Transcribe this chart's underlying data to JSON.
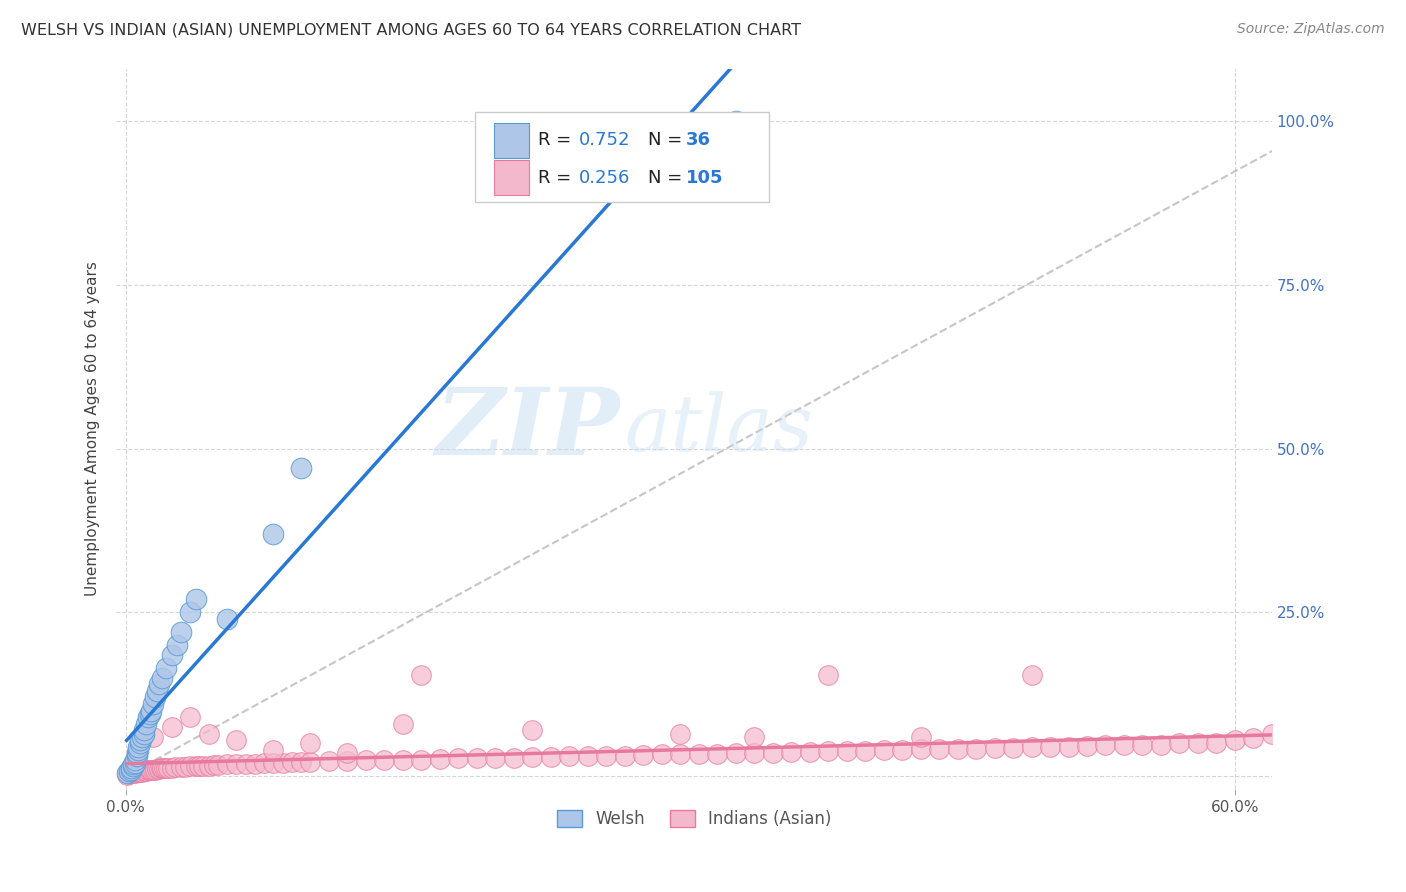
{
  "title": "WELSH VS INDIAN (ASIAN) UNEMPLOYMENT AMONG AGES 60 TO 64 YEARS CORRELATION CHART",
  "source": "Source: ZipAtlas.com",
  "ylabel": "Unemployment Among Ages 60 to 64 years",
  "xlim": [
    -0.005,
    0.62
  ],
  "ylim": [
    -0.02,
    1.08
  ],
  "xticks": [
    0.0,
    0.6
  ],
  "xticklabels": [
    "0.0%",
    "60.0%"
  ],
  "yticks": [
    0.0,
    0.25,
    0.5,
    0.75,
    1.0
  ],
  "right_yticklabels": [
    "",
    "25.0%",
    "50.0%",
    "75.0%",
    "100.0%"
  ],
  "welsh_color": "#aec6e8",
  "indian_color": "#f4b8cc",
  "welsh_edge_color": "#5b9bd5",
  "indian_edge_color": "#e87a9f",
  "welsh_line_color": "#2979d4",
  "indian_line_color": "#e8799e",
  "diag_color": "#b8b8b8",
  "legend_welsh_label": "Welsh",
  "legend_indian_label": "Indians (Asian)",
  "welsh_R": "0.752",
  "welsh_N": "36",
  "indian_R": "0.256",
  "indian_N": "105",
  "watermark_zip": "ZIP",
  "watermark_atlas": "atlas",
  "welsh_x": [
    0.001,
    0.002,
    0.003,
    0.003,
    0.004,
    0.004,
    0.005,
    0.005,
    0.006,
    0.006,
    0.007,
    0.007,
    0.008,
    0.008,
    0.009,
    0.01,
    0.01,
    0.011,
    0.012,
    0.013,
    0.014,
    0.015,
    0.016,
    0.017,
    0.018,
    0.02,
    0.022,
    0.025,
    0.028,
    0.03,
    0.035,
    0.038,
    0.055,
    0.08,
    0.095,
    0.33
  ],
  "welsh_y": [
    0.005,
    0.008,
    0.01,
    0.012,
    0.015,
    0.018,
    0.02,
    0.025,
    0.03,
    0.035,
    0.04,
    0.045,
    0.05,
    0.055,
    0.06,
    0.065,
    0.07,
    0.08,
    0.09,
    0.095,
    0.1,
    0.11,
    0.12,
    0.13,
    0.14,
    0.15,
    0.165,
    0.185,
    0.2,
    0.22,
    0.25,
    0.27,
    0.24,
    0.37,
    0.47,
    1.0
  ],
  "indian_x": [
    0.001,
    0.002,
    0.003,
    0.004,
    0.005,
    0.006,
    0.007,
    0.008,
    0.009,
    0.01,
    0.011,
    0.012,
    0.013,
    0.014,
    0.015,
    0.016,
    0.017,
    0.018,
    0.019,
    0.02,
    0.021,
    0.022,
    0.023,
    0.025,
    0.027,
    0.03,
    0.032,
    0.035,
    0.038,
    0.04,
    0.042,
    0.045,
    0.048,
    0.05,
    0.055,
    0.06,
    0.065,
    0.07,
    0.075,
    0.08,
    0.085,
    0.09,
    0.095,
    0.1,
    0.11,
    0.12,
    0.13,
    0.14,
    0.15,
    0.16,
    0.17,
    0.18,
    0.19,
    0.2,
    0.21,
    0.22,
    0.23,
    0.24,
    0.25,
    0.26,
    0.27,
    0.28,
    0.29,
    0.3,
    0.31,
    0.32,
    0.33,
    0.34,
    0.35,
    0.36,
    0.37,
    0.38,
    0.39,
    0.4,
    0.41,
    0.42,
    0.43,
    0.44,
    0.45,
    0.46,
    0.47,
    0.48,
    0.49,
    0.5,
    0.51,
    0.52,
    0.53,
    0.54,
    0.55,
    0.56,
    0.57,
    0.58,
    0.59,
    0.6,
    0.61,
    0.62,
    0.015,
    0.025,
    0.035,
    0.045,
    0.06,
    0.08,
    0.1,
    0.12,
    0.16
  ],
  "indian_y": [
    0.002,
    0.003,
    0.004,
    0.005,
    0.005,
    0.006,
    0.006,
    0.007,
    0.007,
    0.008,
    0.008,
    0.009,
    0.009,
    0.01,
    0.01,
    0.01,
    0.011,
    0.011,
    0.012,
    0.012,
    0.012,
    0.013,
    0.013,
    0.013,
    0.014,
    0.014,
    0.014,
    0.015,
    0.015,
    0.015,
    0.016,
    0.016,
    0.017,
    0.017,
    0.018,
    0.018,
    0.019,
    0.019,
    0.02,
    0.02,
    0.02,
    0.021,
    0.021,
    0.022,
    0.023,
    0.023,
    0.024,
    0.024,
    0.025,
    0.025,
    0.026,
    0.027,
    0.027,
    0.028,
    0.028,
    0.029,
    0.029,
    0.03,
    0.03,
    0.031,
    0.031,
    0.032,
    0.033,
    0.033,
    0.034,
    0.034,
    0.035,
    0.035,
    0.036,
    0.037,
    0.037,
    0.038,
    0.038,
    0.039,
    0.04,
    0.04,
    0.041,
    0.041,
    0.042,
    0.042,
    0.043,
    0.043,
    0.044,
    0.044,
    0.045,
    0.046,
    0.047,
    0.047,
    0.048,
    0.048,
    0.05,
    0.05,
    0.051,
    0.055,
    0.058,
    0.065,
    0.06,
    0.075,
    0.09,
    0.065,
    0.055,
    0.04,
    0.05,
    0.035,
    0.155
  ],
  "indian_outlier_x": [
    0.38,
    0.49,
    0.15,
    0.22,
    0.3,
    0.34,
    0.43
  ],
  "indian_outlier_y": [
    0.155,
    0.155,
    0.08,
    0.07,
    0.065,
    0.06,
    0.06
  ]
}
